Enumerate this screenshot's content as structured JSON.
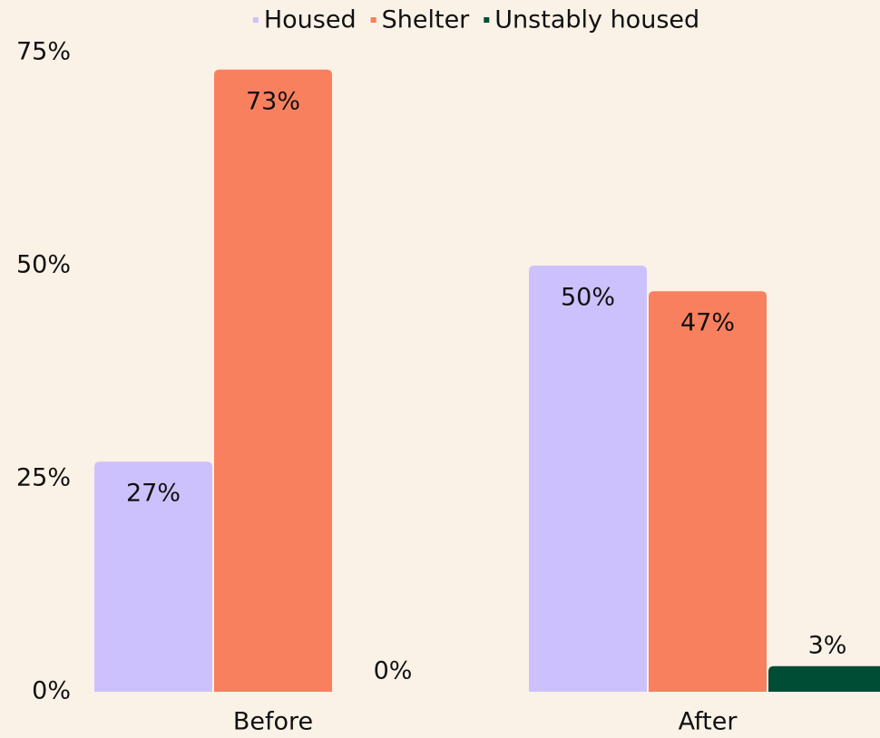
{
  "chart_data": {
    "type": "bar",
    "categories": [
      "Before",
      "After"
    ],
    "series": [
      {
        "name": "Housed",
        "color": "#cdc1fd",
        "values": [
          27,
          50
        ],
        "value_labels": [
          "27%",
          "50%"
        ]
      },
      {
        "name": "Shelter",
        "color": "#f9805e",
        "values": [
          73,
          47
        ],
        "value_labels": [
          "73%",
          "47%"
        ]
      },
      {
        "name": "Unstably housed",
        "color": "#004d35",
        "values": [
          0,
          3
        ],
        "value_labels": [
          "0%",
          "3%"
        ]
      }
    ],
    "ylim": [
      0,
      75
    ],
    "yticks": [
      {
        "value": 0,
        "label": "0%"
      },
      {
        "value": 25,
        "label": "25%"
      },
      {
        "value": 50,
        "label": "50%"
      },
      {
        "value": 75,
        "label": "75%"
      }
    ],
    "legend": "top"
  }
}
